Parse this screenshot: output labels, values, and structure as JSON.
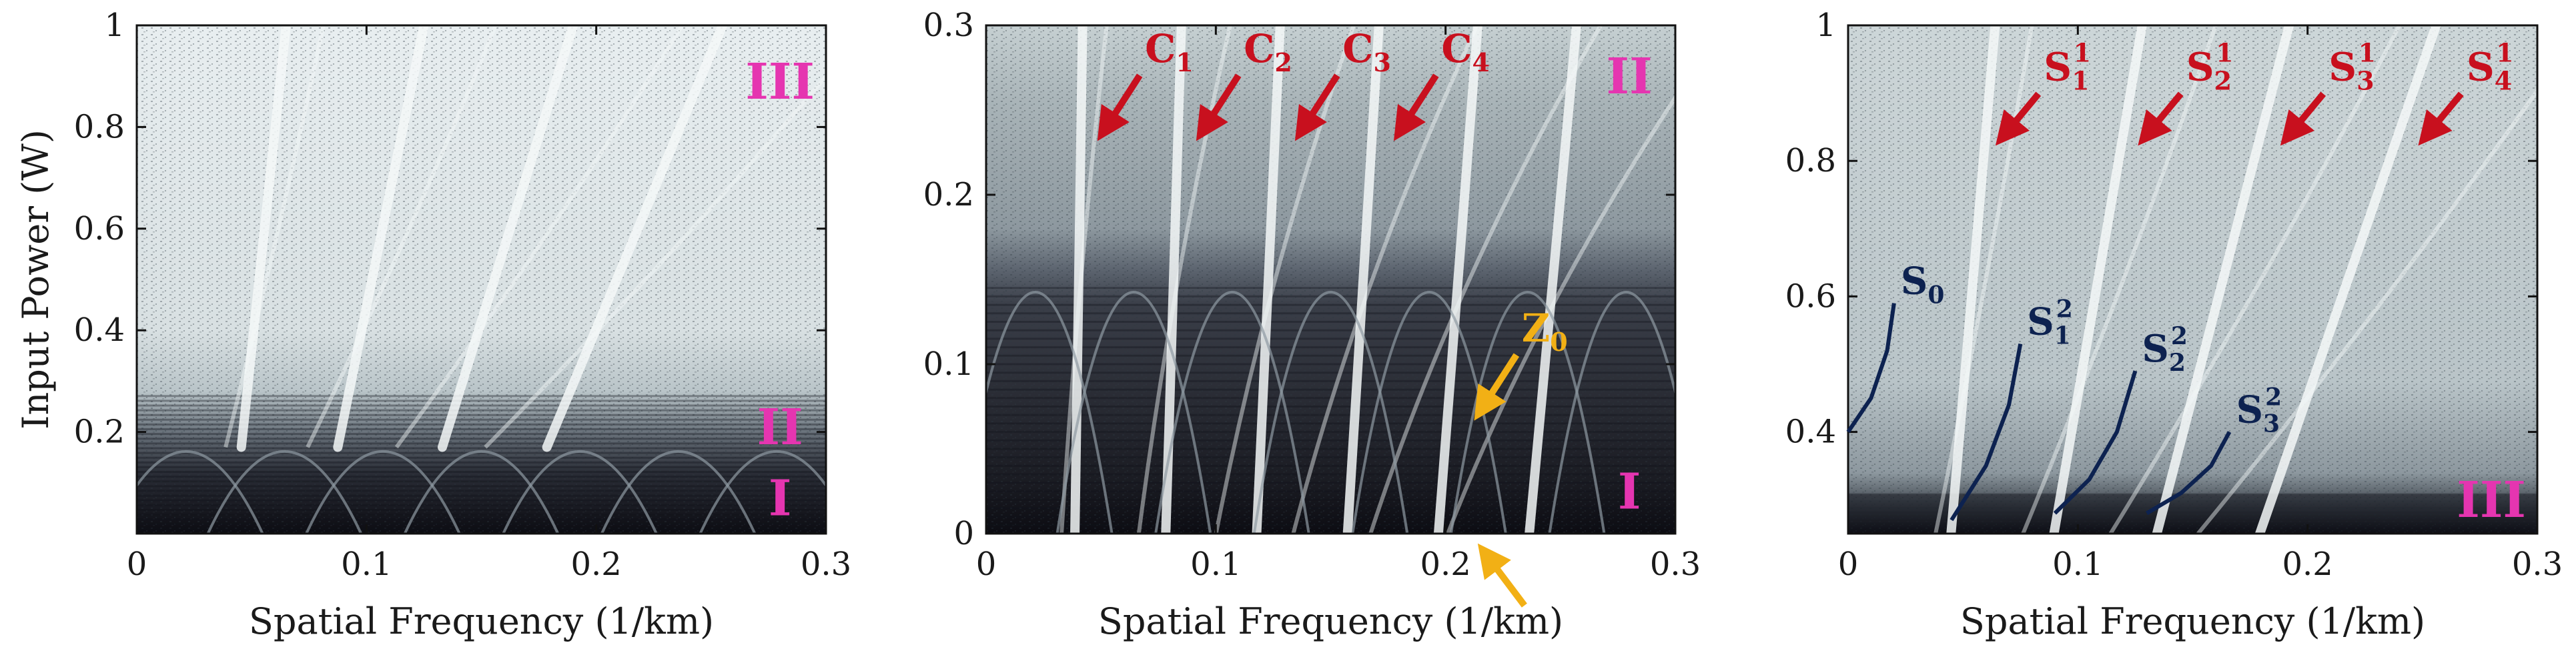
{
  "figure": {
    "colors": {
      "plot_dark": "#0c0c12",
      "plot_mid": "#5a6470",
      "plot_light": "#e8eef0",
      "stripe": "#f4f8f8",
      "red_annotation": "#c8101e",
      "yellow_annotation": "#f2b015",
      "magenta_annotation": "#e535b0",
      "navy_annotation": "#0d2250"
    }
  },
  "chart_data": [
    {
      "type": "heatmap",
      "title": "",
      "xlabel": "Spatial Frequency (1/km)",
      "ylabel": "Input Power (W)",
      "xlim": [
        0,
        0.3
      ],
      "ylim": [
        0,
        1
      ],
      "xticks": [
        0,
        0.1,
        0.2,
        0.3
      ],
      "xtick_labels": [
        "0",
        "0.1",
        "0.2",
        "0.3"
      ],
      "yticks": [
        0.2,
        0.4,
        0.6,
        0.8,
        1
      ],
      "ytick_labels": [
        "0.2",
        "0.4",
        "0.6",
        "0.8",
        "1"
      ],
      "regions": [
        {
          "label": "III",
          "x": 0.28,
          "y": 0.89
        },
        {
          "label": "II",
          "x": 0.28,
          "y": 0.21
        },
        {
          "label": "I",
          "x": 0.28,
          "y": 0.07
        }
      ],
      "region_boundaries": {
        "I_II": 0.17,
        "II_III": 0.28
      },
      "stripe_slopes": [
        0.065,
        0.125,
        0.19,
        0.255
      ]
    },
    {
      "type": "heatmap",
      "title": "",
      "xlabel": "Spatial Frequency (1/km)",
      "ylabel": "",
      "xlim": [
        0,
        0.3
      ],
      "ylim": [
        0,
        0.3
      ],
      "xticks": [
        0,
        0.1,
        0.2,
        0.3
      ],
      "xtick_labels": [
        "0",
        "0.1",
        "0.2",
        "0.3"
      ],
      "yticks": [
        0,
        0.1,
        0.2,
        0.3
      ],
      "ytick_labels": [
        "0",
        "0.1",
        "0.2",
        "0.3"
      ],
      "regions": [
        {
          "label": "II",
          "x": 0.28,
          "y": 0.27
        },
        {
          "label": "I",
          "x": 0.28,
          "y": 0.025
        }
      ],
      "region_boundaries": {
        "I_II": 0.15
      },
      "stripe_slopes": [
        0.042,
        0.085,
        0.128,
        0.171,
        0.214,
        0.257
      ],
      "annotations": [
        {
          "label": "C",
          "sub": "1",
          "x": 0.05,
          "y": 0.235,
          "color": "red"
        },
        {
          "label": "C",
          "sub": "2",
          "x": 0.093,
          "y": 0.235,
          "color": "red"
        },
        {
          "label": "C",
          "sub": "3",
          "x": 0.136,
          "y": 0.235,
          "color": "red"
        },
        {
          "label": "C",
          "sub": "4",
          "x": 0.179,
          "y": 0.235,
          "color": "red"
        },
        {
          "label": "Z",
          "sub": "0",
          "x": 0.214,
          "y": 0.07,
          "color": "yellow"
        }
      ],
      "extra_arrow": {
        "x": 0.214,
        "y": -0.005,
        "color": "yellow"
      }
    },
    {
      "type": "heatmap",
      "title": "",
      "xlabel": "Spatial Frequency (1/km)",
      "ylabel": "",
      "xlim": [
        0,
        0.3
      ],
      "ylim": [
        0.25,
        1
      ],
      "xticks": [
        0,
        0.1,
        0.2,
        0.3
      ],
      "xtick_labels": [
        "0",
        "0.1",
        "0.2",
        "0.3"
      ],
      "yticks": [
        0.4,
        0.6,
        0.8,
        1
      ],
      "ytick_labels": [
        "0.4",
        "0.6",
        "0.8",
        "1"
      ],
      "regions": [
        {
          "label": "III",
          "x": 0.28,
          "y": 0.3
        }
      ],
      "stripe_slopes": [
        0.064,
        0.128,
        0.192,
        0.256
      ],
      "annotations": [
        {
          "label": "S",
          "sub": "1",
          "sup": "1",
          "x": 0.066,
          "y": 0.83,
          "color": "red"
        },
        {
          "label": "S",
          "sub": "2",
          "sup": "1",
          "x": 0.128,
          "y": 0.83,
          "color": "red"
        },
        {
          "label": "S",
          "sub": "3",
          "sup": "1",
          "x": 0.19,
          "y": 0.83,
          "color": "red"
        },
        {
          "label": "S",
          "sub": "4",
          "sup": "1",
          "x": 0.25,
          "y": 0.83,
          "color": "red"
        }
      ],
      "curves": [
        {
          "label": "S",
          "sub": "0",
          "sup": "",
          "points": [
            [
              0.0,
              0.4
            ],
            [
              0.01,
              0.45
            ],
            [
              0.017,
              0.52
            ],
            [
              0.02,
              0.59
            ]
          ]
        },
        {
          "label": "S",
          "sub": "1",
          "sup": "2",
          "points": [
            [
              0.045,
              0.27
            ],
            [
              0.06,
              0.35
            ],
            [
              0.07,
              0.44
            ],
            [
              0.075,
              0.53
            ]
          ]
        },
        {
          "label": "S",
          "sub": "2",
          "sup": "2",
          "points": [
            [
              0.09,
              0.28
            ],
            [
              0.105,
              0.33
            ],
            [
              0.117,
              0.4
            ],
            [
              0.125,
              0.49
            ]
          ]
        },
        {
          "label": "S",
          "sub": "3",
          "sup": "2",
          "points": [
            [
              0.13,
              0.28
            ],
            [
              0.145,
              0.31
            ],
            [
              0.158,
              0.35
            ],
            [
              0.166,
              0.4
            ]
          ]
        }
      ]
    }
  ]
}
